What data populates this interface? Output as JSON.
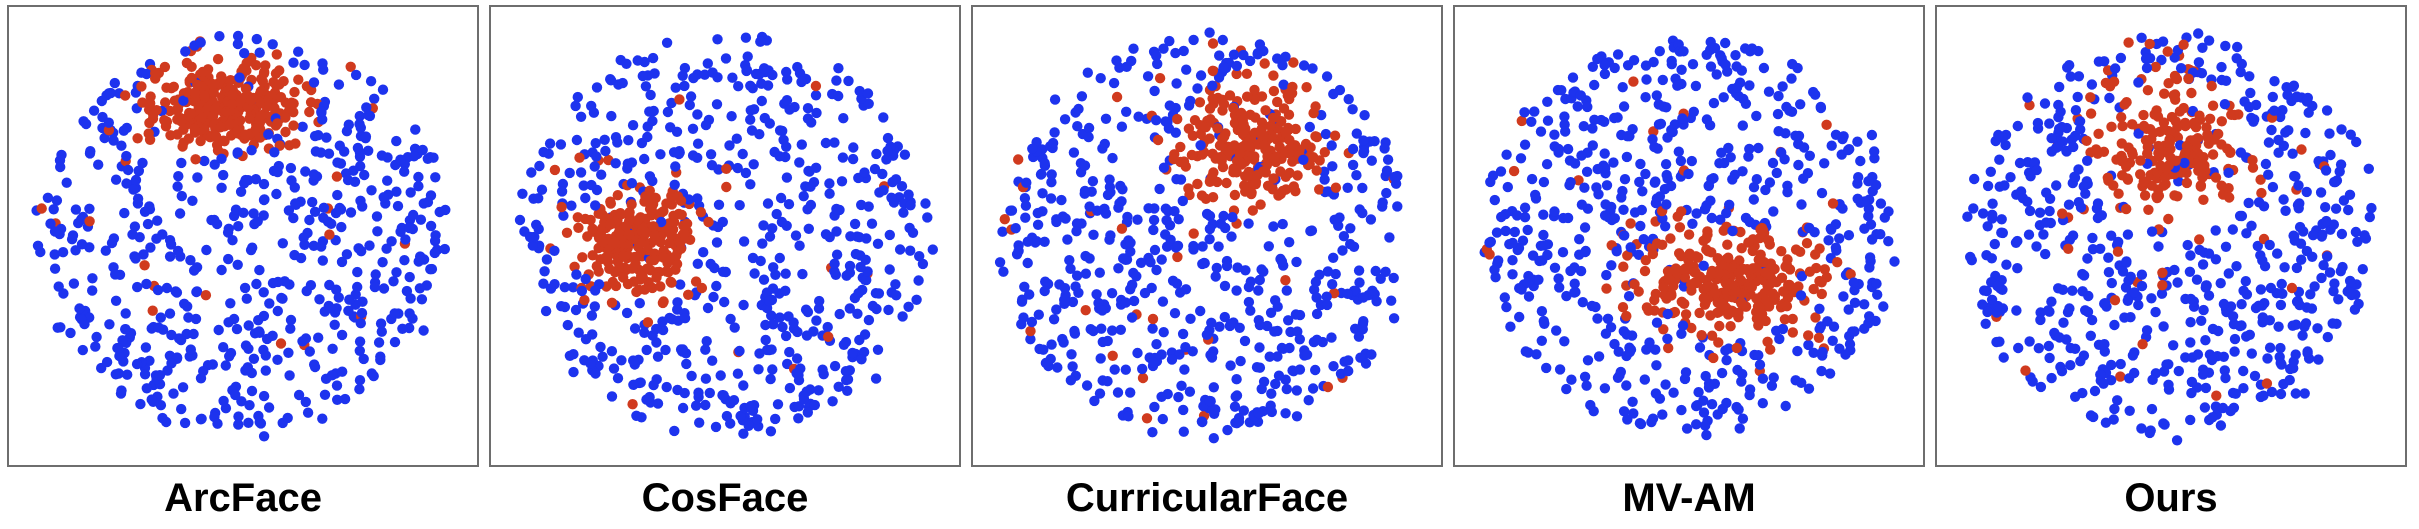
{
  "colors": {
    "red_points": "#d03a1e",
    "blue_points": "#1d33ee",
    "frame": "#6e6e6e"
  },
  "chart_data": [
    {
      "type": "scatter",
      "title": "ArcFace",
      "axes_visible": false,
      "grid": false,
      "legend": "none",
      "xlim": [
        -1,
        1
      ],
      "ylim": [
        -1,
        1
      ],
      "cloud": {
        "shape": "disc",
        "center": [
          0.0,
          0.0
        ],
        "radius": 0.93
      },
      "red_cluster": {
        "center": [
          -0.08,
          0.62
        ],
        "spread": [
          0.34,
          0.2
        ],
        "count": 310,
        "stray_count": 20
      },
      "blue_count": 560
    },
    {
      "type": "scatter",
      "title": "CosFace",
      "axes_visible": false,
      "grid": false,
      "legend": "none",
      "xlim": [
        -1,
        1
      ],
      "ylim": [
        -1,
        1
      ],
      "cloud": {
        "shape": "disc",
        "center": [
          0.0,
          0.0
        ],
        "radius": 0.93
      },
      "red_cluster": {
        "center": [
          -0.4,
          -0.02
        ],
        "spread": [
          0.25,
          0.22
        ],
        "count": 240,
        "stray_count": 20
      },
      "blue_count": 560
    },
    {
      "type": "scatter",
      "title": "CurricularFace",
      "axes_visible": false,
      "grid": false,
      "legend": "none",
      "xlim": [
        -1,
        1
      ],
      "ylim": [
        -1,
        1
      ],
      "cloud": {
        "shape": "disc",
        "center": [
          0.0,
          0.0
        ],
        "radius": 0.93
      },
      "red_cluster": {
        "center": [
          0.2,
          0.4
        ],
        "spread": [
          0.3,
          0.28
        ],
        "count": 250,
        "stray_count": 28
      },
      "blue_count": 560
    },
    {
      "type": "scatter",
      "title": "MV-AM",
      "axes_visible": false,
      "grid": false,
      "legend": "none",
      "xlim": [
        -1,
        1
      ],
      "ylim": [
        -1,
        1
      ],
      "cloud": {
        "shape": "disc",
        "center": [
          0.0,
          0.0
        ],
        "radius": 0.93
      },
      "red_cluster": {
        "center": [
          0.2,
          -0.22
        ],
        "spread": [
          0.38,
          0.23
        ],
        "count": 280,
        "stray_count": 24
      },
      "blue_count": 560
    },
    {
      "type": "scatter",
      "title": "Ours",
      "axes_visible": false,
      "grid": false,
      "legend": "none",
      "xlim": [
        -1,
        1
      ],
      "ylim": [
        -1,
        1
      ],
      "cloud": {
        "shape": "disc",
        "center": [
          0.0,
          0.0
        ],
        "radius": 0.93
      },
      "red_cluster": {
        "center": [
          0.0,
          0.38
        ],
        "spread": [
          0.33,
          0.3
        ],
        "count": 200,
        "stray_count": 30
      },
      "blue_count": 580
    }
  ]
}
